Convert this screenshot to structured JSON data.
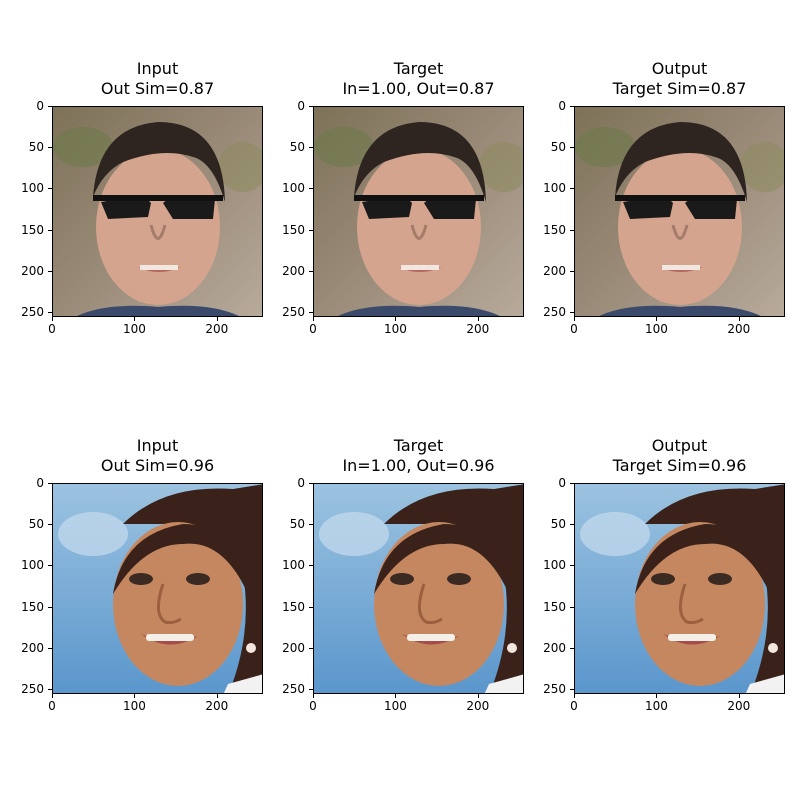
{
  "panels": [
    {
      "title": "Input",
      "subtitle": "Out Sim=0.87",
      "subject": "man-sunglasses"
    },
    {
      "title": "Target",
      "subtitle": "In=1.00, Out=0.87",
      "subject": "man-sunglasses"
    },
    {
      "title": "Output",
      "subtitle": "Target Sim=0.87",
      "subject": "man-sunglasses"
    },
    {
      "title": "Input",
      "subtitle": "Out Sim=0.96",
      "subject": "woman-smiling"
    },
    {
      "title": "Target",
      "subtitle": "In=1.00, Out=0.96",
      "subject": "woman-smiling"
    },
    {
      "title": "Output",
      "subtitle": "Target Sim=0.96",
      "subject": "woman-smiling"
    }
  ],
  "chart_data": {
    "type": "image-grid",
    "rows": 2,
    "cols": 3,
    "x_ticks": [
      "0",
      "100",
      "200"
    ],
    "y_ticks": [
      "0",
      "50",
      "100",
      "150",
      "200",
      "250"
    ],
    "xlim": [
      0,
      256
    ],
    "ylim": [
      256,
      0
    ],
    "similarities": [
      {
        "row": 1,
        "input_out_sim": 0.87,
        "target_in": 1.0,
        "target_out": 0.87,
        "output_target_sim": 0.87
      },
      {
        "row": 2,
        "input_out_sim": 0.96,
        "target_in": 1.0,
        "target_out": 0.96,
        "output_target_sim": 0.96
      }
    ]
  }
}
